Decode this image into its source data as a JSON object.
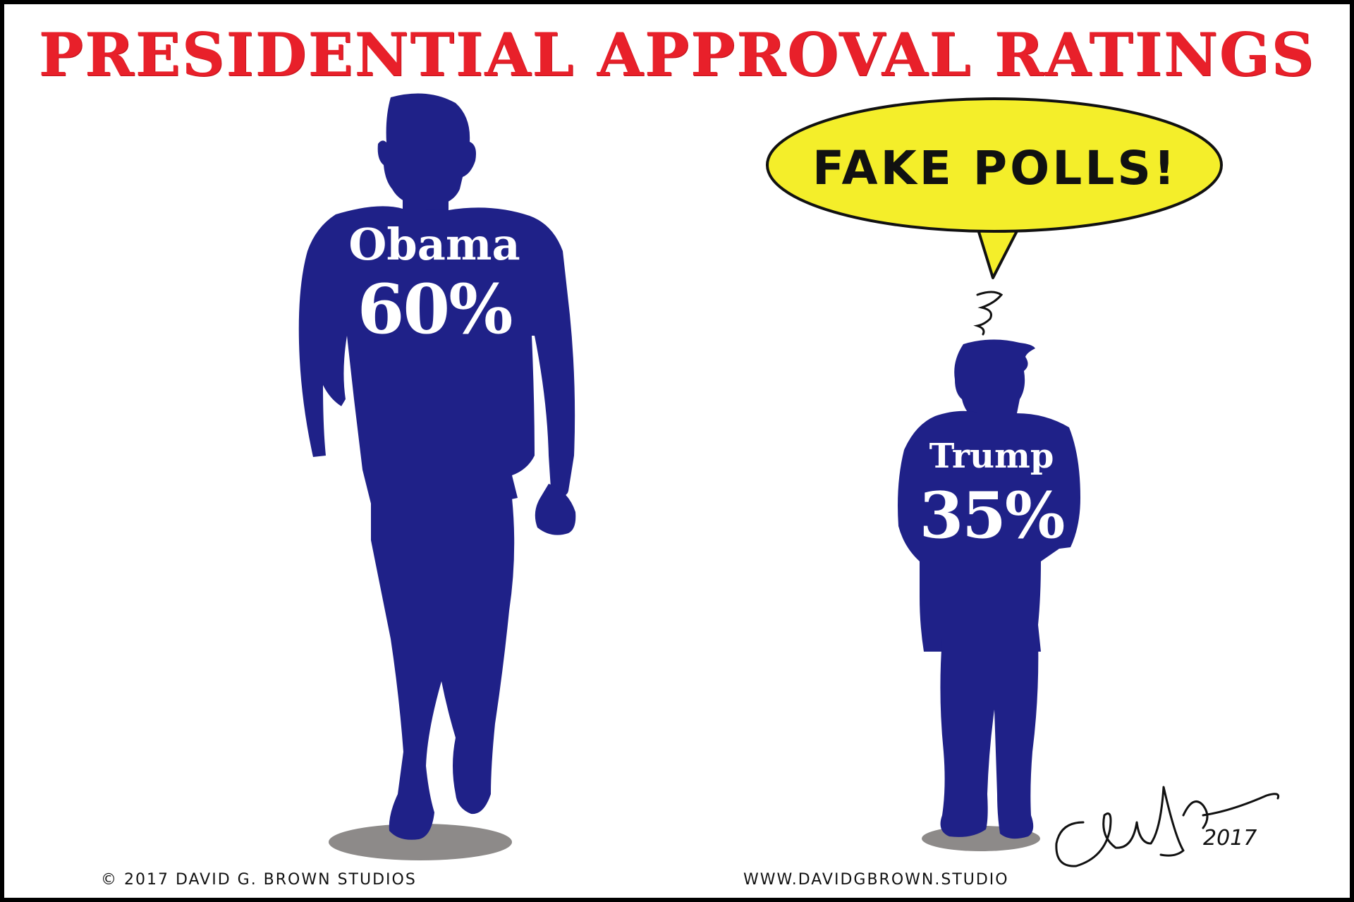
{
  "title": "PRESIDENTIAL APPROVAL RATINGS",
  "figures": [
    {
      "name": "Obama",
      "rating": "60%",
      "color": "#1f2188"
    },
    {
      "name": "Trump",
      "rating": "35%",
      "color": "#1f2188"
    }
  ],
  "speech_bubble": {
    "text": "FAKE POLLS!",
    "color": "#f4ee2a"
  },
  "footer": {
    "copyright": "© 2017 DAVID G. BROWN STUDIOS",
    "website": "WWW.DAVIDGBROWN.STUDIO",
    "signature_year": "2017"
  },
  "colors": {
    "title": "#e8202a",
    "background": "#ffffff",
    "frame": "#000000"
  }
}
